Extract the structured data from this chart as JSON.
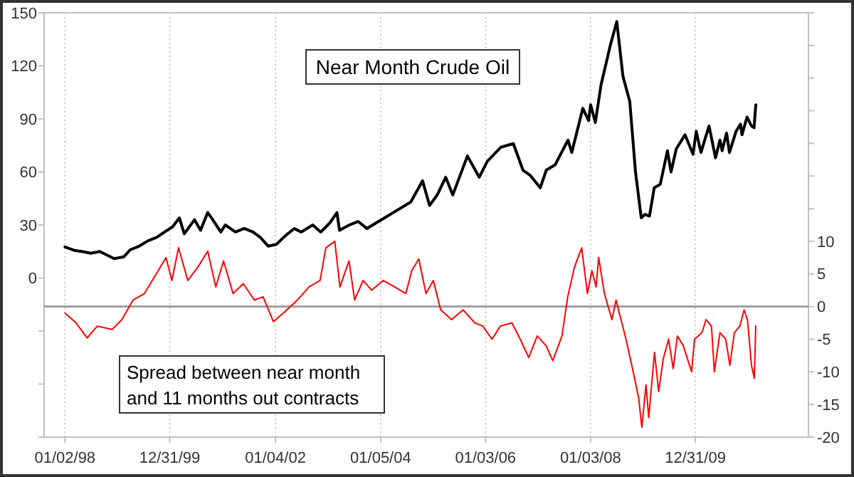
{
  "chart_data": {
    "type": "line",
    "title": "Near Month Crude Oil",
    "annotations": [
      "Spread between near month and 11 months out contracts"
    ],
    "xlim": [
      "1997-08-10",
      "2012-02-25"
    ],
    "xticks": [
      {
        "value": "1998-01-02",
        "label": "01/02/98"
      },
      {
        "value": "1999-12-31",
        "label": "12/31/99"
      },
      {
        "value": "2002-01-04",
        "label": "01/04/02"
      },
      {
        "value": "2004-01-05",
        "label": "01/05/04"
      },
      {
        "value": "2006-01-03",
        "label": "01/03/06"
      },
      {
        "value": "2008-01-03",
        "label": "01/03/08"
      },
      {
        "value": "2009-12-31",
        "label": "12/31/09"
      }
    ],
    "ylim": [
      -90,
      150
    ],
    "yticks": [
      {
        "value": -90,
        "label": null
      },
      {
        "value": -60,
        "label": null
      },
      {
        "value": -30,
        "label": null
      },
      0,
      30,
      60,
      90,
      120,
      150
    ],
    "y2lim": [
      -20,
      45
    ],
    "y2ticks": [
      -20,
      -15,
      -10,
      -5,
      0,
      5,
      10,
      {
        "value": 15,
        "label": null
      },
      {
        "value": 20,
        "label": null
      },
      {
        "value": 25,
        "label": null
      },
      {
        "value": 30,
        "label": null
      },
      {
        "value": 35,
        "label": null
      },
      {
        "value": 40,
        "label": null
      },
      {
        "value": 45,
        "label": null
      }
    ],
    "grid": "x",
    "ref_lines": [
      {
        "axis": "y2",
        "value": 0,
        "color": "#a0a0a0"
      }
    ],
    "series": [
      {
        "color": "#000000",
        "x": [
          "1998-01-02",
          "1998-03-15",
          "1998-05-01",
          "1998-07-01",
          "1998-09-01",
          "1998-12-10",
          "1999-02-15",
          "1999-04-01",
          "1999-06-01",
          "1999-08-01",
          "1999-10-01",
          "1999-11-25",
          "2000-01-20",
          "2000-03-07",
          "2000-04-10",
          "2000-06-20",
          "2000-08-01",
          "2000-09-20",
          "2000-10-25",
          "2000-12-20",
          "2001-01-20",
          "2001-04-01",
          "2001-06-01",
          "2001-08-01",
          "2001-09-20",
          "2001-11-15",
          "2002-01-10",
          "2002-03-15",
          "2002-05-15",
          "2002-07-01",
          "2002-09-20",
          "2002-11-15",
          "2003-01-15",
          "2003-03-07",
          "2003-03-25",
          "2003-06-01",
          "2003-08-01",
          "2003-10-01",
          "2003-12-01",
          "2004-02-01",
          "2004-04-01",
          "2004-06-01",
          "2004-08-01",
          "2004-10-22",
          "2004-12-10",
          "2005-02-01",
          "2005-04-01",
          "2005-05-20",
          "2005-08-30",
          "2005-11-20",
          "2006-01-15",
          "2006-04-20",
          "2006-07-15",
          "2006-09-20",
          "2006-11-10",
          "2007-01-18",
          "2007-03-01",
          "2007-05-01",
          "2007-07-30",
          "2007-08-25",
          "2007-11-10",
          "2007-12-20",
          "2008-01-03",
          "2008-02-05",
          "2008-03-15",
          "2008-05-20",
          "2008-07-03",
          "2008-08-15",
          "2008-10-01",
          "2008-11-10",
          "2008-12-20",
          "2009-01-15",
          "2009-02-15",
          "2009-03-20",
          "2009-05-01",
          "2009-06-20",
          "2009-07-15",
          "2009-08-20",
          "2009-10-20",
          "2009-12-15",
          "2010-01-06",
          "2010-02-08",
          "2010-04-05",
          "2010-05-20",
          "2010-06-20",
          "2010-07-05",
          "2010-08-05",
          "2010-08-25",
          "2010-10-10",
          "2010-11-10",
          "2010-11-20",
          "2010-12-25",
          "2011-01-25",
          "2011-02-12",
          "2011-02-24"
        ],
        "values": [
          17.6,
          15.5,
          15,
          14,
          15,
          11,
          12,
          16,
          18,
          21,
          23,
          26,
          29,
          34,
          25,
          33,
          27,
          37,
          33,
          26,
          30,
          26,
          28,
          26,
          23,
          18,
          19,
          24,
          28,
          26,
          30,
          26,
          31,
          37,
          27,
          30,
          32,
          28,
          31,
          34,
          37,
          40,
          43,
          55,
          41,
          47,
          57,
          47,
          69,
          57,
          66,
          74,
          76,
          61,
          58,
          51,
          61,
          64,
          78,
          71,
          96,
          89,
          98,
          88,
          109,
          132,
          145,
          114,
          100,
          60,
          34,
          36,
          35,
          51,
          53,
          72,
          60,
          73,
          81,
          70,
          83,
          71,
          86,
          68,
          78,
          72,
          82,
          71,
          83,
          87,
          81,
          91,
          86,
          85,
          98
        ]
      },
      {
        "color": "#ff0000",
        "axis": "y2",
        "x": [
          "1998-01-02",
          "1998-03-20",
          "1998-06-05",
          "1998-08-15",
          "1998-11-25",
          "1999-02-01",
          "1999-04-20",
          "1999-07-08",
          "1999-09-15",
          "1999-12-05",
          "2000-01-15",
          "2000-03-01",
          "2000-05-05",
          "2000-07-12",
          "2000-09-20",
          "2000-11-15",
          "2001-01-08",
          "2001-03-15",
          "2001-05-25",
          "2001-08-10",
          "2001-10-10",
          "2001-12-20",
          "2002-02-28",
          "2002-06-05",
          "2002-08-25",
          "2002-11-10",
          "2002-12-20",
          "2003-02-20",
          "2003-03-28",
          "2003-05-30",
          "2003-07-08",
          "2003-09-05",
          "2003-11-03",
          "2004-01-22",
          "2004-04-12",
          "2004-06-28",
          "2004-08-08",
          "2004-09-26",
          "2004-11-15",
          "2005-01-05",
          "2005-02-25",
          "2005-05-12",
          "2005-07-30",
          "2005-10-20",
          "2005-12-15",
          "2006-02-17",
          "2006-04-15",
          "2006-07-05",
          "2006-09-01",
          "2006-10-30",
          "2006-12-28",
          "2007-02-28",
          "2007-04-15",
          "2007-06-18",
          "2007-07-28",
          "2007-09-12",
          "2007-11-02",
          "2007-12-12",
          "2008-01-12",
          "2008-02-10",
          "2008-02-28",
          "2008-04-08",
          "2008-05-30",
          "2008-06-28",
          "2008-09-05",
          "2008-10-25",
          "2008-12-02",
          "2008-12-24",
          "2009-01-22",
          "2009-02-10",
          "2009-03-22",
          "2009-04-20",
          "2009-05-22",
          "2009-06-28",
          "2009-07-30",
          "2009-08-28",
          "2009-10-08",
          "2009-12-05",
          "2009-12-25",
          "2010-02-15",
          "2010-03-15",
          "2010-04-22",
          "2010-05-12",
          "2010-06-20",
          "2010-07-30",
          "2010-08-28",
          "2010-09-28",
          "2010-11-05",
          "2010-12-05",
          "2010-12-28",
          "2011-01-25",
          "2011-02-14",
          "2011-02-24"
        ],
        "values": [
          -1,
          -2.5,
          -4.8,
          -3,
          -3.5,
          -2,
          1,
          2,
          4.5,
          7.5,
          4,
          9,
          4,
          6,
          8.5,
          3,
          7,
          2,
          3.5,
          1,
          1.5,
          -2.3,
          -1,
          1,
          3,
          4,
          9,
          10,
          3,
          7,
          1,
          4,
          2.5,
          4,
          3,
          2,
          5.5,
          7.3,
          2,
          4,
          -0.5,
          -2,
          -0.5,
          -2.5,
          -3,
          -5,
          -3,
          -2.5,
          -5,
          -7.8,
          -4.5,
          -6,
          -8.3,
          -4.5,
          1.5,
          6,
          9,
          2,
          5.5,
          3,
          7.5,
          2,
          -2,
          1,
          -5,
          -10,
          -14,
          -18.5,
          -12,
          -17,
          -7,
          -13,
          -8,
          -5,
          -9.5,
          -4.5,
          -6,
          -10,
          -5,
          -4,
          -2,
          -3,
          -10,
          -4,
          -5,
          -9,
          -4,
          -3,
          -0.5,
          -2,
          -9,
          -11,
          -3
        ]
      }
    ]
  }
}
